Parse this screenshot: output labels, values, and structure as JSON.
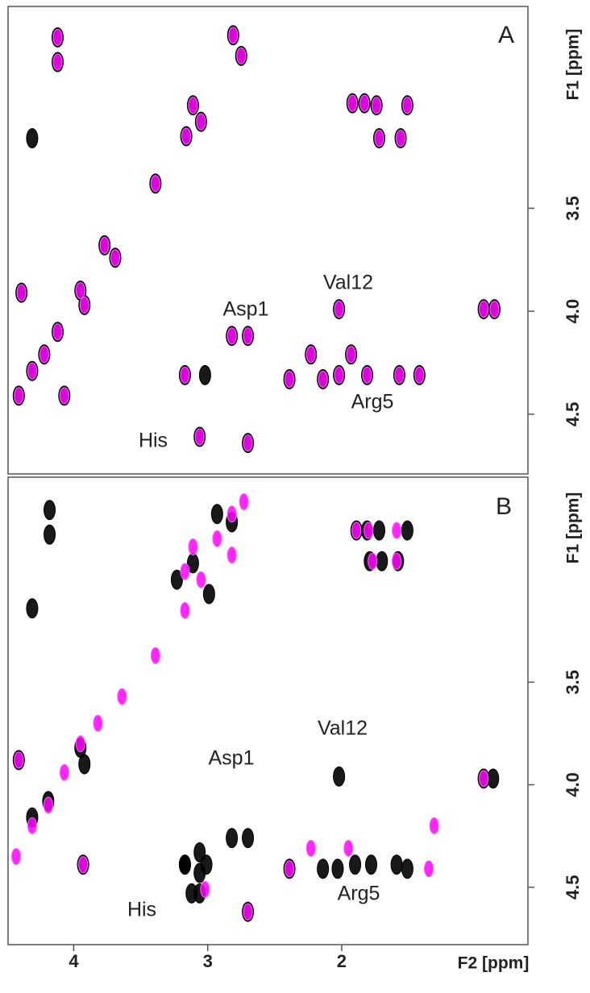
{
  "chart_data": [
    {
      "type": "scatter",
      "label": "A",
      "ylabel": "F1 [ppm]",
      "xlim": [
        4.49,
        0.61
      ],
      "ylim": [
        2.52,
        4.79
      ],
      "yticks": [
        {
          "value": 3.5,
          "label": "3.5"
        },
        {
          "value": 4.0,
          "label": "4.0"
        },
        {
          "value": 4.5,
          "label": "4.5"
        }
      ],
      "annotations": [
        "Asp1",
        "Val12",
        "Arg5",
        "His"
      ],
      "series": [
        {
          "color": "#000000",
          "x": [
            4.12,
            4.12,
            2.81,
            2.75,
            3.11,
            3.05,
            3.16,
            4.31,
            3.39,
            3.77,
            3.69,
            4.39,
            3.95,
            3.92,
            4.12,
            4.22,
            4.31,
            4.41,
            4.07,
            3.17,
            3.02,
            3.06,
            2.7,
            2.82,
            2.7,
            2.23,
            2.02,
            1.93,
            1.81,
            1.57,
            1.42,
            2.39,
            2.14,
            1.92,
            1.83,
            1.74,
            1.51,
            1.72,
            1.56,
            2.02,
            0.94,
            0.86
          ],
          "y": [
            2.67,
            2.79,
            2.66,
            2.76,
            3.0,
            3.08,
            3.15,
            3.16,
            3.38,
            3.68,
            3.74,
            3.91,
            3.9,
            3.97,
            4.1,
            4.21,
            4.29,
            4.41,
            4.41,
            4.31,
            4.31,
            4.61,
            4.64,
            4.12,
            4.12,
            4.21,
            4.31,
            4.21,
            4.31,
            4.31,
            4.31,
            4.33,
            4.33,
            2.99,
            2.99,
            3.0,
            3.0,
            3.16,
            3.16,
            3.99,
            3.99,
            3.99
          ]
        },
        {
          "color": "#ff00ff",
          "x": [
            4.12,
            4.12,
            2.81,
            2.75,
            3.11,
            3.05,
            3.16,
            3.39,
            3.77,
            3.69,
            4.39,
            3.95,
            3.92,
            4.12,
            4.22,
            4.31,
            4.41,
            4.07,
            3.17,
            3.06,
            2.7,
            2.82,
            2.7,
            2.23,
            2.02,
            1.93,
            1.81,
            1.57,
            1.42,
            2.39,
            2.14,
            1.92,
            1.83,
            1.74,
            1.51,
            1.72,
            1.56,
            2.02,
            0.94,
            0.86
          ],
          "y": [
            2.67,
            2.79,
            2.66,
            2.76,
            3.0,
            3.08,
            3.15,
            3.38,
            3.68,
            3.74,
            3.91,
            3.9,
            3.97,
            4.1,
            4.21,
            4.29,
            4.41,
            4.41,
            4.31,
            4.61,
            4.64,
            4.12,
            4.12,
            4.21,
            4.31,
            4.21,
            4.31,
            4.31,
            4.31,
            4.33,
            4.33,
            2.99,
            2.99,
            3.0,
            3.0,
            3.16,
            3.16,
            3.99,
            3.99,
            3.99
          ]
        }
      ]
    },
    {
      "type": "scatter",
      "label": "B",
      "ylabel": "F1 [ppm]",
      "xlabel": "F2 [ppm]",
      "xlim": [
        4.49,
        0.61
      ],
      "ylim": [
        2.5,
        4.78
      ],
      "xticks": [
        4,
        3,
        2
      ],
      "yticks": [
        {
          "value": 3.5,
          "label": "3.5"
        },
        {
          "value": 4.0,
          "label": "4.0"
        },
        {
          "value": 4.5,
          "label": "4.5"
        }
      ],
      "annotations": [
        "Asp1",
        "Val12",
        "Arg5",
        "His"
      ],
      "series": [
        {
          "color": "#000000",
          "x": [
            4.18,
            4.18,
            4.31,
            2.93,
            2.82,
            3.11,
            3.23,
            2.99,
            4.41,
            3.95,
            3.92,
            4.31,
            4.19,
            3.93,
            3.17,
            3.06,
            3.06,
            2.02,
            0.94,
            0.87,
            2.82,
            2.7,
            3.17,
            3.01,
            2.39,
            2.14,
            2.03,
            1.9,
            1.78,
            1.59,
            1.51,
            1.89,
            1.81,
            1.72,
            1.51,
            1.79,
            1.7,
            1.58,
            2.7,
            3.06,
            3.12
          ],
          "y": [
            2.66,
            2.78,
            3.14,
            2.68,
            2.72,
            2.92,
            3.0,
            3.07,
            3.88,
            3.82,
            3.9,
            4.16,
            4.08,
            4.39,
            4.39,
            4.33,
            4.43,
            3.96,
            3.97,
            3.97,
            4.26,
            4.26,
            4.39,
            4.39,
            4.41,
            4.41,
            4.41,
            4.39,
            4.39,
            4.39,
            4.41,
            2.76,
            2.76,
            2.76,
            2.76,
            2.91,
            2.91,
            2.91,
            4.62,
            4.53,
            4.53
          ]
        },
        {
          "color": "#ff00ff",
          "x": [
            2.82,
            2.73,
            3.11,
            3.17,
            3.05,
            2.93,
            2.82,
            3.39,
            3.17,
            3.64,
            3.82,
            3.95,
            4.07,
            4.19,
            4.31,
            4.43,
            3.93,
            4.41,
            2.23,
            1.95,
            2.39,
            1.35,
            1.31,
            1.89,
            1.8,
            1.59,
            1.77,
            1.59,
            0.94,
            2.7,
            3.02
          ],
          "y": [
            2.68,
            2.62,
            2.84,
            2.96,
            3.0,
            2.8,
            2.88,
            3.37,
            3.15,
            3.57,
            3.7,
            3.8,
            3.94,
            4.1,
            4.2,
            4.35,
            4.39,
            3.88,
            4.31,
            4.31,
            4.41,
            4.41,
            4.2,
            2.76,
            2.76,
            2.76,
            2.91,
            2.91,
            3.97,
            4.62,
            4.51
          ]
        }
      ]
    }
  ]
}
